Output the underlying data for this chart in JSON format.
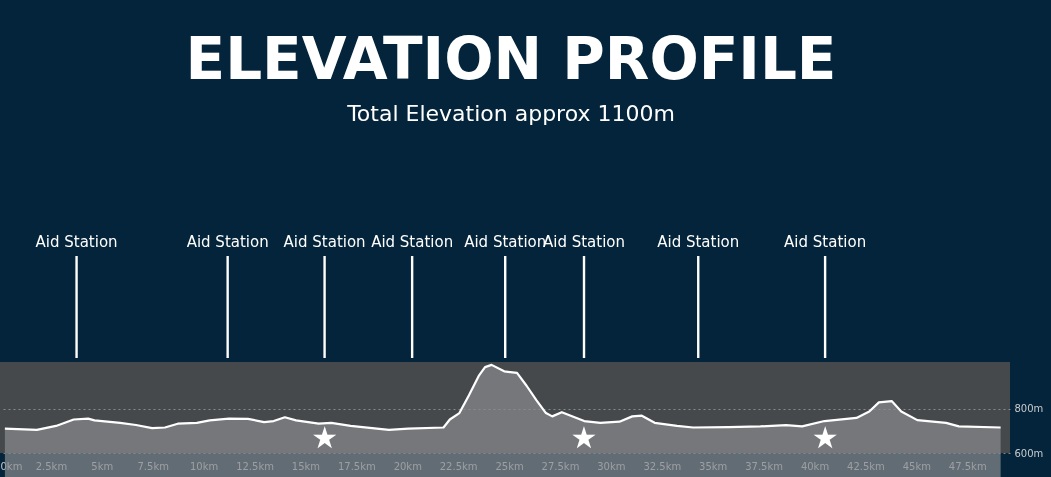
{
  "chart_data": {
    "type": "area",
    "title": "ELEVATION PROFILE",
    "subtitle": "Total Elevation approx 1100m",
    "x": [
      0.24,
      1.81,
      2.75,
      3.62,
      4.33,
      4.64,
      5.9,
      6.68,
      7.47,
      8.1,
      8.73,
      9.67,
      10.3,
      11.24,
      12.18,
      12.97,
      13.44,
      13.99,
      14.54,
      15.65,
      16.27,
      17.22,
      19.1,
      20.05,
      21.78,
      22.09,
      22.56,
      23.03,
      23.51,
      23.82,
      24.14,
      24.76,
      25.39,
      25.86,
      26.34,
      26.81,
      27.12,
      27.59,
      28.69,
      29.48,
      30.42,
      31.05,
      31.52,
      32.15,
      33.25,
      34.04,
      35.77,
      37.34,
      38.6,
      39.39,
      40.49,
      42.06,
      42.69,
      43.16,
      43.79,
      44.26,
      45.05,
      46.46,
      47.09,
      49.14
    ],
    "series": [
      {
        "color": "#8a8c8e",
        "values": [
          710,
          704,
          722,
          751,
          755,
          747,
          736,
          726,
          712,
          715,
          732,
          736,
          747,
          755,
          754,
          739,
          744,
          761,
          747,
          732,
          736,
          722,
          704,
          710,
          715,
          751,
          780,
          860,
          947,
          987,
          997,
          968,
          961,
          903,
          838,
          780,
          765,
          784,
          744,
          736,
          741,
          765,
          768,
          736,
          722,
          715,
          717,
          720,
          726,
          720,
          744,
          758,
          787,
          828,
          834,
          787,
          748,
          736,
          720,
          715
        ]
      }
    ],
    "xlim": [
      0,
      49.6
    ],
    "xticks": [
      {
        "value": 0,
        "label": "0km"
      },
      {
        "value": 2.5,
        "label": "2.5km"
      },
      {
        "value": 5,
        "label": "5km"
      },
      {
        "value": 7.5,
        "label": "7.5km"
      },
      {
        "value": 10,
        "label": "10km"
      },
      {
        "value": 12.5,
        "label": "12.5km"
      },
      {
        "value": 15,
        "label": "15km"
      },
      {
        "value": 17.5,
        "label": "17.5km"
      },
      {
        "value": 20,
        "label": "20km"
      },
      {
        "value": 22.5,
        "label": "22.5km"
      },
      {
        "value": 25,
        "label": "25km"
      },
      {
        "value": 27.5,
        "label": "27.5km"
      },
      {
        "value": 30,
        "label": "30km"
      },
      {
        "value": 32.5,
        "label": "32.5km"
      },
      {
        "value": 35,
        "label": "35km"
      },
      {
        "value": 37.5,
        "label": "37.5km"
      },
      {
        "value": 40,
        "label": "40km"
      },
      {
        "value": 42.5,
        "label": "42.5km"
      },
      {
        "value": 45,
        "label": "45km"
      },
      {
        "value": 47.5,
        "label": "47.5km"
      }
    ],
    "ylim": [
      600,
      1010
    ],
    "yticks": [
      {
        "value": 600,
        "label": "600m"
      },
      {
        "value": 800,
        "label": "800m"
      }
    ],
    "grid": "y",
    "marker": "none",
    "ref_lines": [
      {
        "axis": "x",
        "value": 3.76,
        "label": "Aid Station"
      },
      {
        "axis": "x",
        "value": 11.18,
        "label": "Aid Station"
      },
      {
        "axis": "x",
        "value": 15.94,
        "label": "Aid Station"
      },
      {
        "axis": "x",
        "value": 20.24,
        "label": "Aid Station"
      },
      {
        "axis": "x",
        "value": 24.81,
        "label": "Aid Station"
      },
      {
        "axis": "x",
        "value": 28.68,
        "label": "Aid Station"
      },
      {
        "axis": "x",
        "value": 34.29,
        "label": "Aid Station"
      },
      {
        "axis": "x",
        "value": 40.52,
        "label": "Aid Station"
      }
    ],
    "annotations": [
      "★",
      "★",
      "★"
    ]
  }
}
